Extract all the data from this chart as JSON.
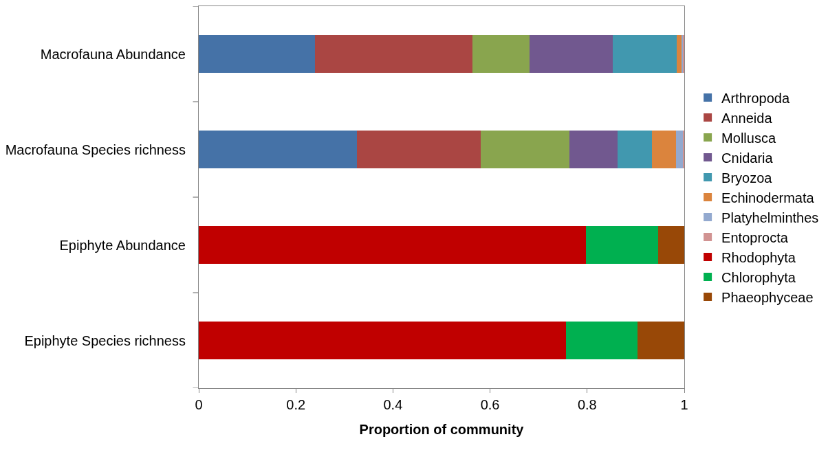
{
  "chart_data": {
    "type": "bar",
    "orientation": "horizontal",
    "stacked": true,
    "xlabel": "Proportion of community",
    "categories": [
      "Macrofauna Abundance",
      "Macrofauna Species richness",
      "Epiphyte Abundance",
      "Epiphyte Species richness"
    ],
    "xlim": [
      0,
      1
    ],
    "xticks": [
      0,
      0.2,
      0.4,
      0.6,
      0.8,
      1
    ],
    "grid": false,
    "legend": "right",
    "series": [
      {
        "name": "Arthropoda",
        "color": "#4572a7",
        "values": [
          0.239,
          0.326,
          null,
          null
        ]
      },
      {
        "name": "Anneida",
        "color": "#aa4643",
        "values": [
          0.325,
          0.255,
          null,
          null
        ]
      },
      {
        "name": "Mollusca",
        "color": "#89a54e",
        "values": [
          0.118,
          0.182,
          null,
          null
        ]
      },
      {
        "name": "Cnidaria",
        "color": "#71588f",
        "values": [
          0.17,
          0.1,
          null,
          null
        ]
      },
      {
        "name": "Bryozoa",
        "color": "#4198af",
        "values": [
          0.133,
          0.071,
          null,
          null
        ]
      },
      {
        "name": "Echinodermata",
        "color": "#db843d",
        "values": [
          0.01,
          0.049,
          null,
          null
        ]
      },
      {
        "name": "Platyhelminthes",
        "color": "#93a9cf",
        "values": [
          0.003,
          0.015,
          null,
          null
        ]
      },
      {
        "name": "Entoprocta",
        "color": "#d19392",
        "values": [
          0.002,
          0.002,
          null,
          null
        ]
      },
      {
        "name": "Rhodophyta",
        "color": "#c00000",
        "values": [
          null,
          null,
          0.797,
          0.757
        ]
      },
      {
        "name": "Chlorophyta",
        "color": "#00b050",
        "values": [
          null,
          null,
          0.149,
          0.146
        ]
      },
      {
        "name": "Phaeophyceae",
        "color": "#984807",
        "values": [
          null,
          null,
          0.054,
          0.097
        ]
      }
    ]
  }
}
